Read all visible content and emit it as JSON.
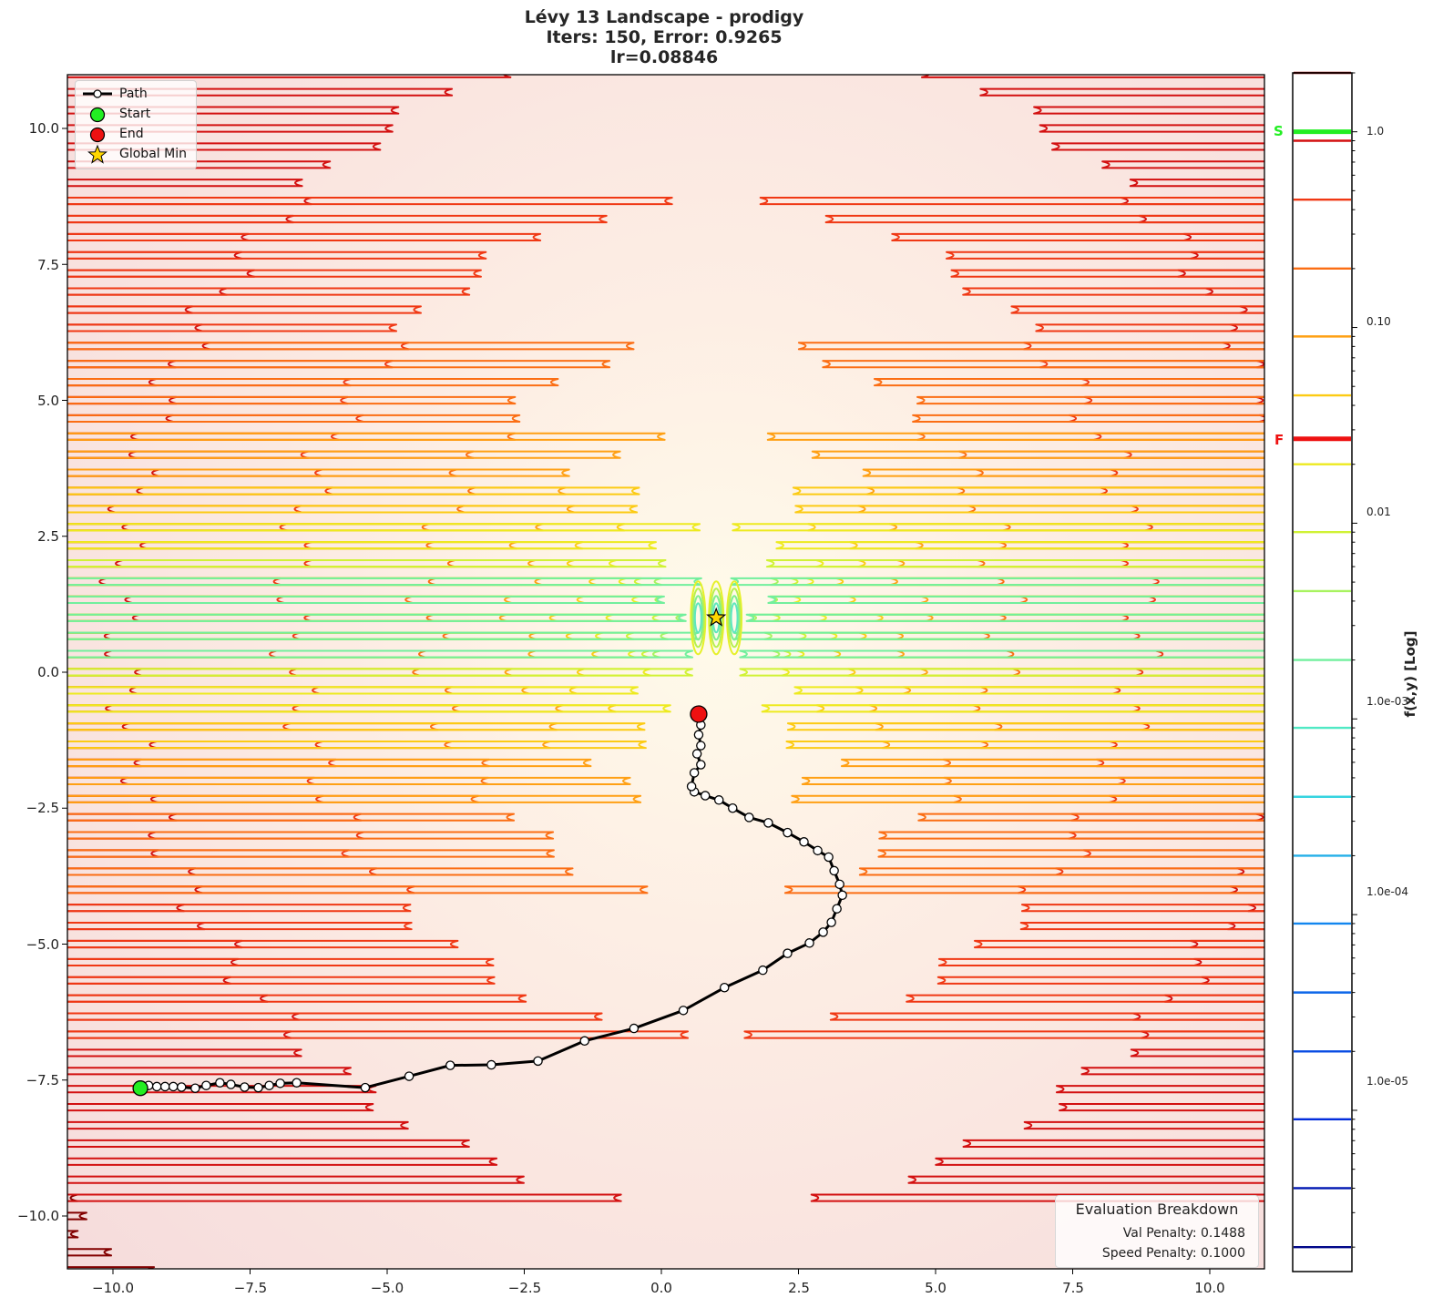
{
  "title": {
    "line1": "Lévy 13 Landscape - prodigy",
    "line2": "Iters: 150, Error: 0.9265",
    "line3": "lr=0.08846"
  },
  "legend": {
    "items": [
      {
        "label": "Path",
        "icon": "path-line-icon"
      },
      {
        "label": "Start",
        "icon": "green-circle-icon",
        "color": "#22ee22"
      },
      {
        "label": "End",
        "icon": "red-circle-icon",
        "color": "#ee1111"
      },
      {
        "label": "Global Min",
        "icon": "yellow-star-icon",
        "color": "#ffd700"
      }
    ]
  },
  "breakdown": {
    "title": "Evaluation Breakdown",
    "val_penalty": "Val Penalty: 0.1488",
    "speed_penalty": "Speed Penalty: 0.1000"
  },
  "axes": {
    "x_ticks": [
      "−10.0",
      "−7.5",
      "−5.0",
      "−2.5",
      "0.0",
      "2.5",
      "5.0",
      "7.5",
      "10.0"
    ],
    "y_ticks": [
      "10.0",
      "7.5",
      "5.0",
      "2.5",
      "0.0",
      "−2.5",
      "−5.0",
      "−7.5",
      "−10.0"
    ]
  },
  "colorbar": {
    "label": "f(x,y) [Log]",
    "ticks": [
      "1.0",
      "0.10",
      "0.01",
      "1.0e-03",
      "1.0e-04",
      "1.0e-05"
    ],
    "start_marker": "S",
    "final_marker": "F",
    "start_color": "#22ee22",
    "final_color": "#ee1111"
  },
  "chart_data": {
    "type": "contour",
    "title": "Lévy 13 Landscape - prodigy / Iters: 150, Error: 0.9265 / lr=0.08846",
    "xlabel": "",
    "ylabel": "",
    "xlim": [
      -11,
      11
    ],
    "ylim": [
      -11,
      11
    ],
    "colorbar_label": "f(x,y) [Log]",
    "colorbar_scale": "log",
    "colorbar_range": [
      1.5e-06,
      2.0
    ],
    "contour_colormap": "jet (blue low → red high)",
    "global_min": {
      "x": 1.0,
      "y": 1.0
    },
    "start": {
      "x": -9.5,
      "y": -7.65,
      "normalized_value": 1.0
    },
    "end": {
      "x": 0.68,
      "y": -0.77,
      "normalized_value": 0.027
    },
    "path": {
      "iterations": 150,
      "points": [
        [
          -9.5,
          -7.65
        ],
        [
          -9.35,
          -7.6
        ],
        [
          -9.2,
          -7.62
        ],
        [
          -9.05,
          -7.62
        ],
        [
          -8.9,
          -7.62
        ],
        [
          -8.75,
          -7.63
        ],
        [
          -8.5,
          -7.65
        ],
        [
          -8.3,
          -7.6
        ],
        [
          -8.05,
          -7.55
        ],
        [
          -7.85,
          -7.58
        ],
        [
          -7.6,
          -7.63
        ],
        [
          -7.35,
          -7.64
        ],
        [
          -7.15,
          -7.6
        ],
        [
          -6.95,
          -7.56
        ],
        [
          -6.65,
          -7.55
        ],
        [
          -5.4,
          -7.64
        ],
        [
          -4.6,
          -7.43
        ],
        [
          -3.85,
          -7.23
        ],
        [
          -3.1,
          -7.22
        ],
        [
          -2.25,
          -7.15
        ],
        [
          -1.4,
          -6.78
        ],
        [
          -0.5,
          -6.55
        ],
        [
          0.4,
          -6.22
        ],
        [
          1.15,
          -5.8
        ],
        [
          1.85,
          -5.48
        ],
        [
          2.3,
          -5.17
        ],
        [
          2.7,
          -4.98
        ],
        [
          2.95,
          -4.78
        ],
        [
          3.1,
          -4.6
        ],
        [
          3.2,
          -4.35
        ],
        [
          3.3,
          -4.1
        ],
        [
          3.25,
          -3.9
        ],
        [
          3.15,
          -3.65
        ],
        [
          3.05,
          -3.4
        ],
        [
          2.85,
          -3.28
        ],
        [
          2.6,
          -3.12
        ],
        [
          2.3,
          -2.95
        ],
        [
          1.95,
          -2.77
        ],
        [
          1.6,
          -2.67
        ],
        [
          1.3,
          -2.5
        ],
        [
          1.05,
          -2.35
        ],
        [
          0.8,
          -2.27
        ],
        [
          0.6,
          -2.2
        ],
        [
          0.55,
          -2.1
        ],
        [
          0.6,
          -1.85
        ],
        [
          0.72,
          -1.7
        ],
        [
          0.65,
          -1.5
        ],
        [
          0.72,
          -1.35
        ],
        [
          0.68,
          -1.15
        ],
        [
          0.72,
          -0.97
        ],
        [
          0.68,
          -0.77
        ]
      ]
    },
    "contour_levels": [
      2.0,
      0.9,
      0.45,
      0.2,
      0.09,
      0.045,
      0.02,
      0.009,
      0.0045,
      0.002,
      0.0009,
      0.0004,
      0.0002,
      9e-05,
      4e-05,
      2e-05,
      9e-06,
      4e-06,
      2e-06
    ],
    "legend": [
      "Path",
      "Start",
      "End",
      "Global Min"
    ],
    "annotations": [
      "Evaluation Breakdown",
      "Val Penalty: 0.1488",
      "Speed Penalty: 0.1000",
      "S",
      "F"
    ],
    "grid": false,
    "legend_position": "upper left"
  }
}
